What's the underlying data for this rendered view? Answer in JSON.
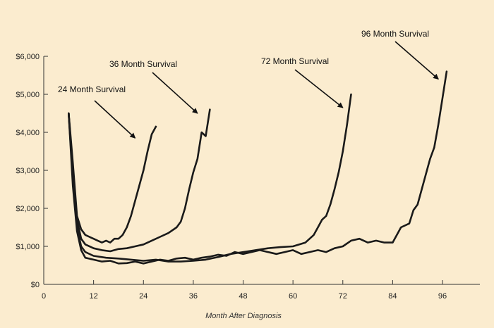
{
  "chart_data": {
    "type": "line",
    "title": "",
    "xlabel": "Month After Diagnosis",
    "ylabel": "",
    "xlim": [
      0,
      105
    ],
    "ylim": [
      0,
      6000
    ],
    "x_ticks": [
      0,
      12,
      24,
      36,
      48,
      60,
      72,
      84,
      96
    ],
    "x_tick_labels": [
      "0",
      "12",
      "24",
      "36",
      "48",
      "60",
      "72",
      "84",
      "96"
    ],
    "y_ticks": [
      0,
      1000,
      2000,
      3000,
      4000,
      5000,
      6000
    ],
    "y_tick_labels": [
      "$0",
      "$1,000",
      "$2,000",
      "$3,000",
      "$4,000",
      "$5,000",
      "$6,000"
    ],
    "grid": false,
    "line_color": "#1a1a1a",
    "series": [
      {
        "name": "24 Month Survival",
        "points": [
          [
            6,
            4500
          ],
          [
            7,
            3200
          ],
          [
            8,
            1800
          ],
          [
            9,
            1450
          ],
          [
            10,
            1300
          ],
          [
            11,
            1250
          ],
          [
            12,
            1200
          ],
          [
            13,
            1150
          ],
          [
            14,
            1100
          ],
          [
            15,
            1150
          ],
          [
            16,
            1100
          ],
          [
            17,
            1200
          ],
          [
            18,
            1200
          ],
          [
            19,
            1300
          ],
          [
            20,
            1500
          ],
          [
            21,
            1800
          ],
          [
            22,
            2200
          ],
          [
            23,
            2600
          ],
          [
            24,
            3000
          ],
          [
            25,
            3500
          ],
          [
            26,
            3950
          ],
          [
            27,
            4150
          ]
        ]
      },
      {
        "name": "36 Month Survival",
        "points": [
          [
            6,
            4500
          ],
          [
            7,
            3000
          ],
          [
            8,
            1700
          ],
          [
            9,
            1200
          ],
          [
            10,
            1050
          ],
          [
            12,
            950
          ],
          [
            14,
            900
          ],
          [
            16,
            870
          ],
          [
            18,
            930
          ],
          [
            20,
            950
          ],
          [
            22,
            1000
          ],
          [
            24,
            1050
          ],
          [
            26,
            1150
          ],
          [
            28,
            1250
          ],
          [
            30,
            1350
          ],
          [
            32,
            1500
          ],
          [
            33,
            1650
          ],
          [
            34,
            2000
          ],
          [
            35,
            2500
          ],
          [
            36,
            2950
          ],
          [
            37,
            3300
          ],
          [
            38,
            4000
          ],
          [
            39,
            3900
          ],
          [
            40,
            4600
          ]
        ]
      },
      {
        "name": "72 Month Survival",
        "points": [
          [
            6,
            4500
          ],
          [
            7,
            2800
          ],
          [
            8,
            1500
          ],
          [
            9,
            1000
          ],
          [
            10,
            850
          ],
          [
            12,
            750
          ],
          [
            15,
            700
          ],
          [
            18,
            680
          ],
          [
            21,
            650
          ],
          [
            24,
            620
          ],
          [
            27,
            650
          ],
          [
            30,
            600
          ],
          [
            33,
            600
          ],
          [
            36,
            620
          ],
          [
            39,
            650
          ],
          [
            42,
            720
          ],
          [
            45,
            800
          ],
          [
            48,
            850
          ],
          [
            51,
            900
          ],
          [
            54,
            950
          ],
          [
            57,
            980
          ],
          [
            60,
            1000
          ],
          [
            63,
            1100
          ],
          [
            65,
            1300
          ],
          [
            66,
            1500
          ],
          [
            67,
            1700
          ],
          [
            68,
            1800
          ],
          [
            69,
            2100
          ],
          [
            70,
            2500
          ],
          [
            71,
            2950
          ],
          [
            72,
            3500
          ],
          [
            73,
            4200
          ],
          [
            74,
            5000
          ]
        ]
      },
      {
        "name": "96 Month Survival",
        "points": [
          [
            6,
            4500
          ],
          [
            7,
            2600
          ],
          [
            8,
            1400
          ],
          [
            9,
            900
          ],
          [
            10,
            700
          ],
          [
            12,
            650
          ],
          [
            14,
            600
          ],
          [
            16,
            620
          ],
          [
            18,
            550
          ],
          [
            20,
            560
          ],
          [
            22,
            600
          ],
          [
            24,
            550
          ],
          [
            26,
            600
          ],
          [
            28,
            650
          ],
          [
            30,
            620
          ],
          [
            32,
            680
          ],
          [
            34,
            700
          ],
          [
            36,
            650
          ],
          [
            38,
            700
          ],
          [
            40,
            730
          ],
          [
            42,
            780
          ],
          [
            44,
            750
          ],
          [
            46,
            850
          ],
          [
            48,
            800
          ],
          [
            50,
            850
          ],
          [
            52,
            900
          ],
          [
            54,
            850
          ],
          [
            56,
            800
          ],
          [
            58,
            850
          ],
          [
            60,
            900
          ],
          [
            62,
            800
          ],
          [
            64,
            850
          ],
          [
            66,
            900
          ],
          [
            68,
            850
          ],
          [
            70,
            950
          ],
          [
            72,
            1000
          ],
          [
            74,
            1150
          ],
          [
            76,
            1200
          ],
          [
            78,
            1100
          ],
          [
            80,
            1150
          ],
          [
            82,
            1100
          ],
          [
            84,
            1100
          ],
          [
            86,
            1500
          ],
          [
            88,
            1600
          ],
          [
            89,
            1950
          ],
          [
            90,
            2100
          ],
          [
            91,
            2500
          ],
          [
            92,
            2900
          ],
          [
            93,
            3300
          ],
          [
            94,
            3600
          ],
          [
            95,
            4200
          ],
          [
            96,
            4900
          ],
          [
            97,
            5600
          ]
        ]
      }
    ],
    "annotations": [
      {
        "text": "24 Month Survival",
        "target": [
          22,
          3850
        ]
      },
      {
        "text": "36 Month Survival",
        "target": [
          37,
          4500
        ]
      },
      {
        "text": "72 Month Survival",
        "target": [
          72,
          4650
        ]
      },
      {
        "text": "96 Month Survival",
        "target": [
          95,
          5400
        ]
      }
    ]
  }
}
